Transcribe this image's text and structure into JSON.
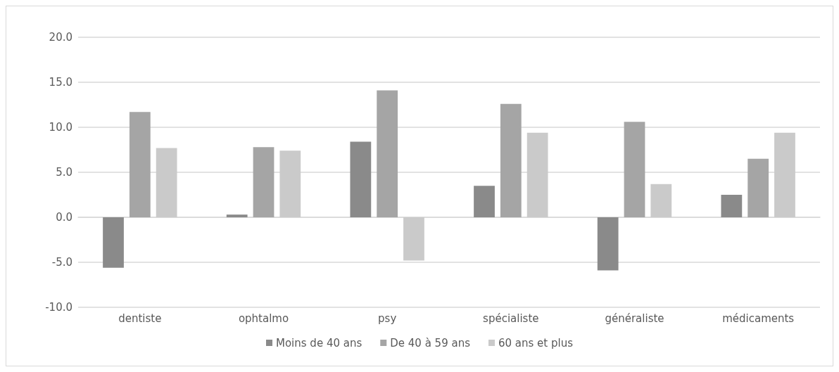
{
  "chart_data": {
    "type": "bar",
    "categories": [
      "dentiste",
      "ophtalmo",
      "psy",
      "spécialiste",
      "généraliste",
      "médicaments"
    ],
    "series": [
      {
        "name": "Moins de 40 ans",
        "color": "#8a8a8a",
        "values": [
          -5.6,
          0.3,
          8.4,
          3.5,
          -5.9,
          2.5
        ]
      },
      {
        "name": "De 40 à 59 ans",
        "color": "#a5a5a5",
        "values": [
          11.7,
          7.8,
          14.1,
          12.6,
          10.6,
          6.5
        ]
      },
      {
        "name": "60 ans et plus",
        "color": "#cacaca",
        "values": [
          7.7,
          7.4,
          -4.8,
          9.4,
          3.7,
          9.4
        ]
      }
    ],
    "ylim": [
      -10,
      20
    ],
    "yticks": [
      {
        "value": -10,
        "label": "-10.0"
      },
      {
        "value": -5,
        "label": "-5.0"
      },
      {
        "value": 0,
        "label": "0.0"
      },
      {
        "value": 5,
        "label": "5.0"
      },
      {
        "value": 10,
        "label": "10.0"
      },
      {
        "value": 15,
        "label": "15.0"
      },
      {
        "value": 20,
        "label": "20.0"
      }
    ],
    "grid": "y",
    "legend": "bottom"
  }
}
